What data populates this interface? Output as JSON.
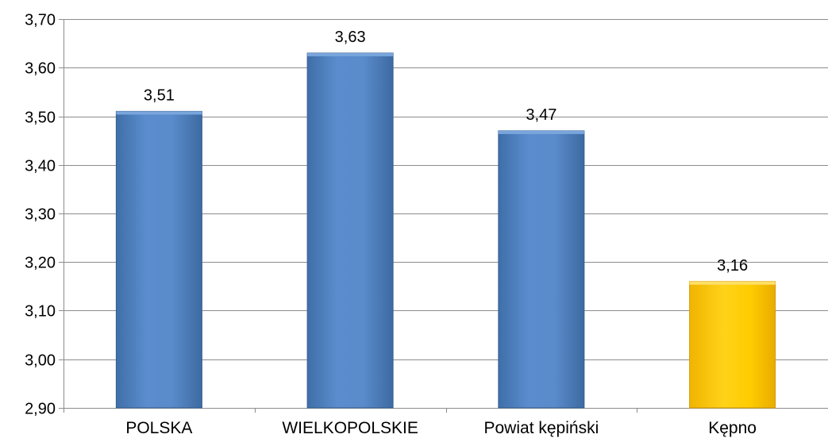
{
  "chart_data": {
    "type": "bar",
    "categories": [
      "POLSKA",
      "WIELKOPOLSKIE",
      "Powiat kępiński",
      "Kępno"
    ],
    "values": [
      3.51,
      3.63,
      3.47,
      3.16
    ],
    "value_labels": [
      "3,51",
      "3,63",
      "3,47",
      "3,16"
    ],
    "ylim": [
      2.9,
      3.7
    ],
    "yticks": [
      2.9,
      3.0,
      3.1,
      3.2,
      3.3,
      3.4,
      3.5,
      3.6,
      3.7
    ],
    "ytick_labels": [
      "2,90",
      "3,00",
      "3,10",
      "3,20",
      "3,30",
      "3,40",
      "3,50",
      "3,60",
      "3,70"
    ],
    "grid": true,
    "title": "",
    "xlabel": "",
    "ylabel": "",
    "bar_colors": [
      "#4f81bd",
      "#4f81bd",
      "#4f81bd",
      "#ffc000"
    ]
  }
}
